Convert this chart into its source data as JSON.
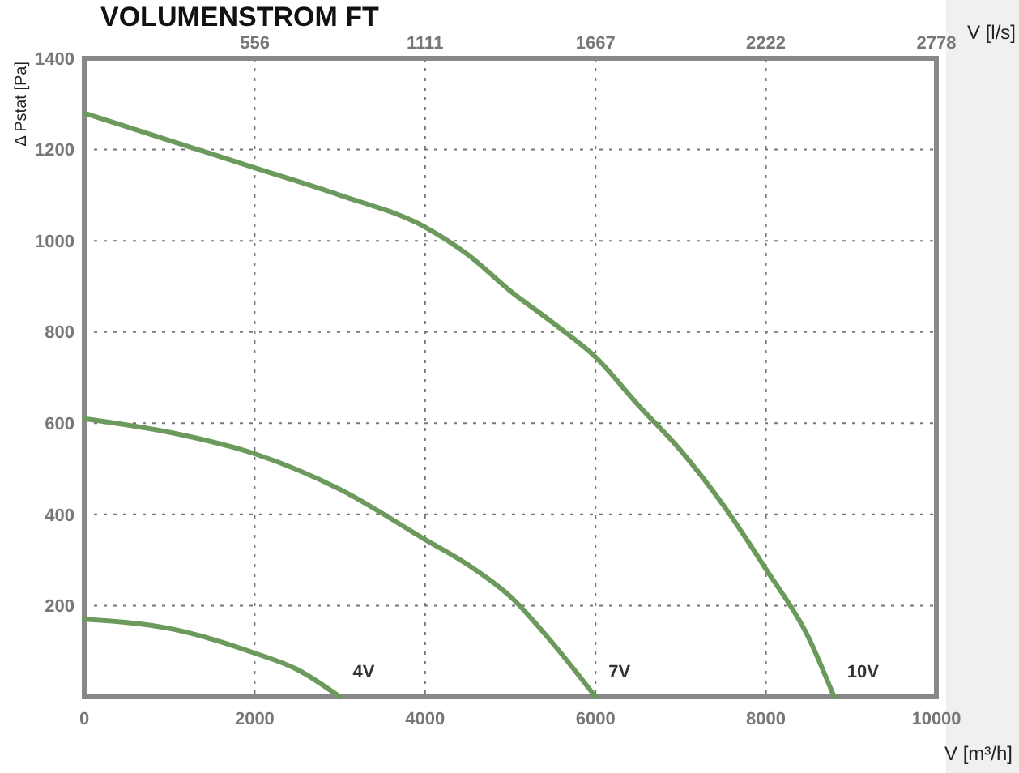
{
  "chart_data": {
    "type": "line",
    "title": "VOLUMENSTROM FT",
    "xlabel": "V [m³/h]",
    "x2label": "V [l/s]",
    "ylabel": "Δ Pstat [Pa]",
    "xlim": [
      0,
      10000
    ],
    "xticks": [
      0,
      2000,
      4000,
      6000,
      8000,
      10000
    ],
    "x2lim": [
      0,
      2778
    ],
    "x2ticks": [
      556,
      1111,
      1667,
      2222,
      2778
    ],
    "ylim": [
      0,
      1400
    ],
    "yticks": [
      {
        "value": 0,
        "label": null
      },
      200,
      400,
      600,
      800,
      1000,
      1200,
      1400
    ],
    "grid": true,
    "marker": "none",
    "line_style": "solid",
    "series": [
      {
        "name": "10V",
        "color": "#6b9a5c",
        "x": [
          0,
          1000,
          2000,
          3000,
          4000,
          4500,
          5000,
          5500,
          6000,
          6500,
          7000,
          7500,
          8000,
          8500,
          8800
        ],
        "values": [
          1280,
          1220,
          1160,
          1100,
          1030,
          970,
          890,
          820,
          745,
          640,
          540,
          420,
          280,
          130,
          0
        ]
      },
      {
        "name": "7V",
        "color": "#6b9a5c",
        "x": [
          0,
          1000,
          2000,
          3000,
          4000,
          4500,
          5000,
          5500,
          6000
        ],
        "values": [
          610,
          580,
          533,
          455,
          345,
          290,
          220,
          117,
          0
        ]
      },
      {
        "name": "4V",
        "color": "#6b9a5c",
        "x": [
          0,
          1000,
          2000,
          2500,
          3000
        ],
        "values": [
          170,
          150,
          96,
          60,
          0
        ]
      }
    ]
  }
}
